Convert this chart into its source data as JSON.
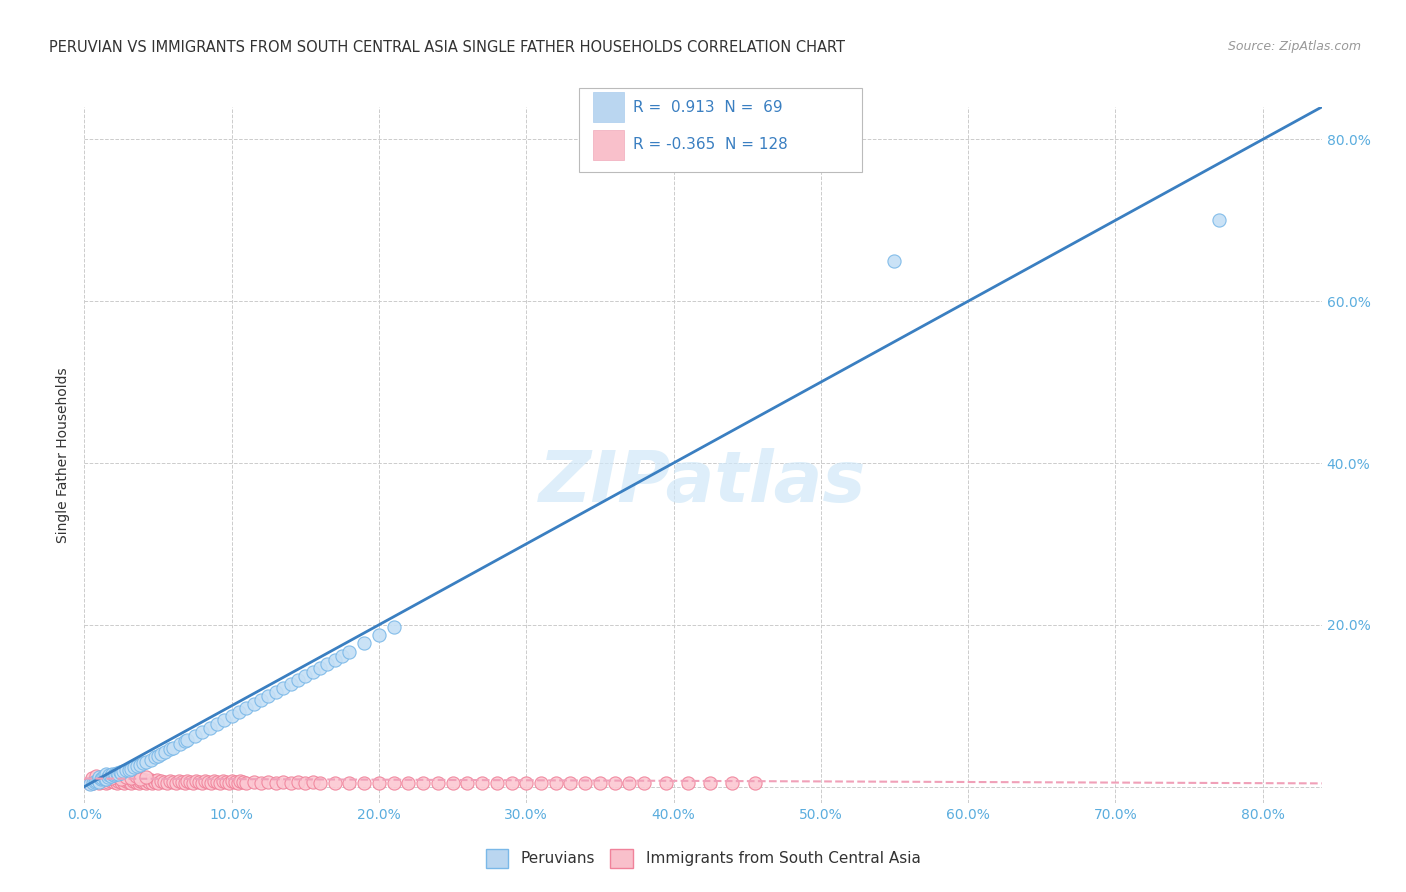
{
  "title": "PERUVIAN VS IMMIGRANTS FROM SOUTH CENTRAL ASIA SINGLE FATHER HOUSEHOLDS CORRELATION CHART",
  "source": "Source: ZipAtlas.com",
  "xlabel_ticks": [
    0.0,
    0.1,
    0.2,
    0.3,
    0.4,
    0.5,
    0.6,
    0.7,
    0.8
  ],
  "xlabel_labels": [
    "0.0%",
    "10.0%",
    "20.0%",
    "30.0%",
    "40.0%",
    "50.0%",
    "60.0%",
    "70.0%",
    "80.0%"
  ],
  "ylabel_ticks": [
    0.0,
    0.2,
    0.4,
    0.6,
    0.8
  ],
  "ylabel_labels": [
    "",
    "20.0%",
    "40.0%",
    "60.0%",
    "80.0%"
  ],
  "ylabel_label": "Single Father Households",
  "xmin": 0.0,
  "xmax": 0.84,
  "ymin": -0.02,
  "ymax": 0.84,
  "blue_R": 0.913,
  "blue_N": 69,
  "pink_R": -0.365,
  "pink_N": 128,
  "blue_dot_face": "#c5dff5",
  "blue_dot_edge": "#7ab8e8",
  "pink_dot_face": "#fcc8d2",
  "pink_dot_edge": "#f0829a",
  "blue_line_color": "#3a7fc1",
  "pink_line_color": "#f0a0b8",
  "blue_legend_fill": "#bad6f0",
  "pink_legend_fill": "#f9c0cb",
  "legend_text_color": "#3a7fc1",
  "axis_tick_color": "#5badde",
  "ylabel_color": "#333333",
  "title_color": "#333333",
  "source_color": "#999999",
  "grid_color": "#cccccc",
  "background_color": "#ffffff",
  "watermark_color": "#d0e8f8",
  "watermark_text": "ZIPatlas",
  "blue_x": [
    0.004,
    0.006,
    0.007,
    0.008,
    0.009,
    0.01,
    0.01,
    0.011,
    0.012,
    0.013,
    0.014,
    0.015,
    0.015,
    0.016,
    0.017,
    0.018,
    0.019,
    0.02,
    0.021,
    0.022,
    0.023,
    0.024,
    0.025,
    0.026,
    0.028,
    0.03,
    0.032,
    0.034,
    0.036,
    0.038,
    0.04,
    0.042,
    0.045,
    0.048,
    0.05,
    0.052,
    0.055,
    0.058,
    0.06,
    0.065,
    0.068,
    0.07,
    0.075,
    0.08,
    0.085,
    0.09,
    0.095,
    0.1,
    0.105,
    0.11,
    0.115,
    0.12,
    0.125,
    0.13,
    0.135,
    0.14,
    0.145,
    0.15,
    0.155,
    0.16,
    0.165,
    0.17,
    0.175,
    0.18,
    0.19,
    0.2,
    0.21,
    0.55,
    0.77
  ],
  "blue_y": [
    0.003,
    0.005,
    0.006,
    0.007,
    0.008,
    0.006,
    0.012,
    0.009,
    0.011,
    0.013,
    0.01,
    0.009,
    0.015,
    0.012,
    0.014,
    0.013,
    0.016,
    0.014,
    0.016,
    0.017,
    0.015,
    0.018,
    0.017,
    0.019,
    0.02,
    0.021,
    0.022,
    0.024,
    0.026,
    0.027,
    0.029,
    0.031,
    0.033,
    0.036,
    0.038,
    0.04,
    0.043,
    0.046,
    0.048,
    0.053,
    0.056,
    0.058,
    0.063,
    0.068,
    0.072,
    0.077,
    0.082,
    0.087,
    0.092,
    0.097,
    0.102,
    0.107,
    0.112,
    0.117,
    0.122,
    0.127,
    0.132,
    0.137,
    0.142,
    0.147,
    0.152,
    0.157,
    0.162,
    0.167,
    0.177,
    0.187,
    0.197,
    0.65,
    0.7
  ],
  "pink_x": [
    0.003,
    0.005,
    0.006,
    0.007,
    0.008,
    0.009,
    0.01,
    0.01,
    0.011,
    0.012,
    0.013,
    0.014,
    0.015,
    0.015,
    0.016,
    0.017,
    0.018,
    0.019,
    0.02,
    0.021,
    0.022,
    0.023,
    0.024,
    0.025,
    0.026,
    0.027,
    0.028,
    0.029,
    0.03,
    0.031,
    0.032,
    0.033,
    0.034,
    0.035,
    0.036,
    0.037,
    0.038,
    0.039,
    0.04,
    0.041,
    0.042,
    0.043,
    0.044,
    0.045,
    0.046,
    0.047,
    0.048,
    0.049,
    0.05,
    0.052,
    0.054,
    0.056,
    0.058,
    0.06,
    0.062,
    0.064,
    0.066,
    0.068,
    0.07,
    0.072,
    0.074,
    0.076,
    0.078,
    0.08,
    0.082,
    0.084,
    0.086,
    0.088,
    0.09,
    0.092,
    0.094,
    0.096,
    0.098,
    0.1,
    0.102,
    0.104,
    0.106,
    0.108,
    0.11,
    0.115,
    0.12,
    0.125,
    0.13,
    0.135,
    0.14,
    0.145,
    0.15,
    0.155,
    0.16,
    0.17,
    0.18,
    0.19,
    0.2,
    0.21,
    0.22,
    0.23,
    0.24,
    0.25,
    0.26,
    0.27,
    0.28,
    0.29,
    0.3,
    0.31,
    0.32,
    0.33,
    0.34,
    0.35,
    0.36,
    0.37,
    0.38,
    0.395,
    0.41,
    0.425,
    0.44,
    0.455,
    0.005,
    0.008,
    0.012,
    0.015,
    0.018,
    0.022,
    0.025,
    0.028,
    0.032,
    0.035,
    0.038,
    0.042
  ],
  "pink_y": [
    0.004,
    0.006,
    0.005,
    0.007,
    0.006,
    0.008,
    0.005,
    0.009,
    0.007,
    0.006,
    0.008,
    0.007,
    0.005,
    0.01,
    0.006,
    0.008,
    0.007,
    0.009,
    0.006,
    0.008,
    0.005,
    0.007,
    0.009,
    0.006,
    0.008,
    0.005,
    0.007,
    0.009,
    0.006,
    0.008,
    0.005,
    0.007,
    0.009,
    0.006,
    0.008,
    0.005,
    0.007,
    0.009,
    0.006,
    0.008,
    0.005,
    0.007,
    0.006,
    0.008,
    0.005,
    0.007,
    0.006,
    0.008,
    0.005,
    0.007,
    0.006,
    0.005,
    0.007,
    0.006,
    0.005,
    0.007,
    0.006,
    0.005,
    0.007,
    0.006,
    0.005,
    0.007,
    0.006,
    0.005,
    0.007,
    0.006,
    0.005,
    0.007,
    0.006,
    0.005,
    0.007,
    0.006,
    0.005,
    0.007,
    0.006,
    0.005,
    0.007,
    0.006,
    0.005,
    0.006,
    0.005,
    0.006,
    0.005,
    0.006,
    0.005,
    0.006,
    0.005,
    0.006,
    0.005,
    0.005,
    0.005,
    0.005,
    0.005,
    0.005,
    0.005,
    0.005,
    0.005,
    0.005,
    0.005,
    0.005,
    0.005,
    0.005,
    0.005,
    0.005,
    0.005,
    0.005,
    0.005,
    0.005,
    0.005,
    0.005,
    0.005,
    0.005,
    0.005,
    0.005,
    0.005,
    0.005,
    0.011,
    0.013,
    0.01,
    0.012,
    0.011,
    0.013,
    0.01,
    0.012,
    0.011,
    0.013,
    0.01,
    0.012
  ],
  "blue_trend_x0": 0.0,
  "blue_trend_y0": 0.0,
  "blue_trend_x1": 0.84,
  "blue_trend_y1": 0.84,
  "pink_trend_x0": 0.0,
  "pink_trend_y0": 0.01,
  "pink_trend_x1": 0.84,
  "pink_trend_y1": 0.004,
  "title_fontsize": 10.5,
  "source_fontsize": 9,
  "tick_fontsize": 10,
  "ylabel_fontsize": 10,
  "legend_fontsize": 11,
  "watermark_fontsize": 52
}
